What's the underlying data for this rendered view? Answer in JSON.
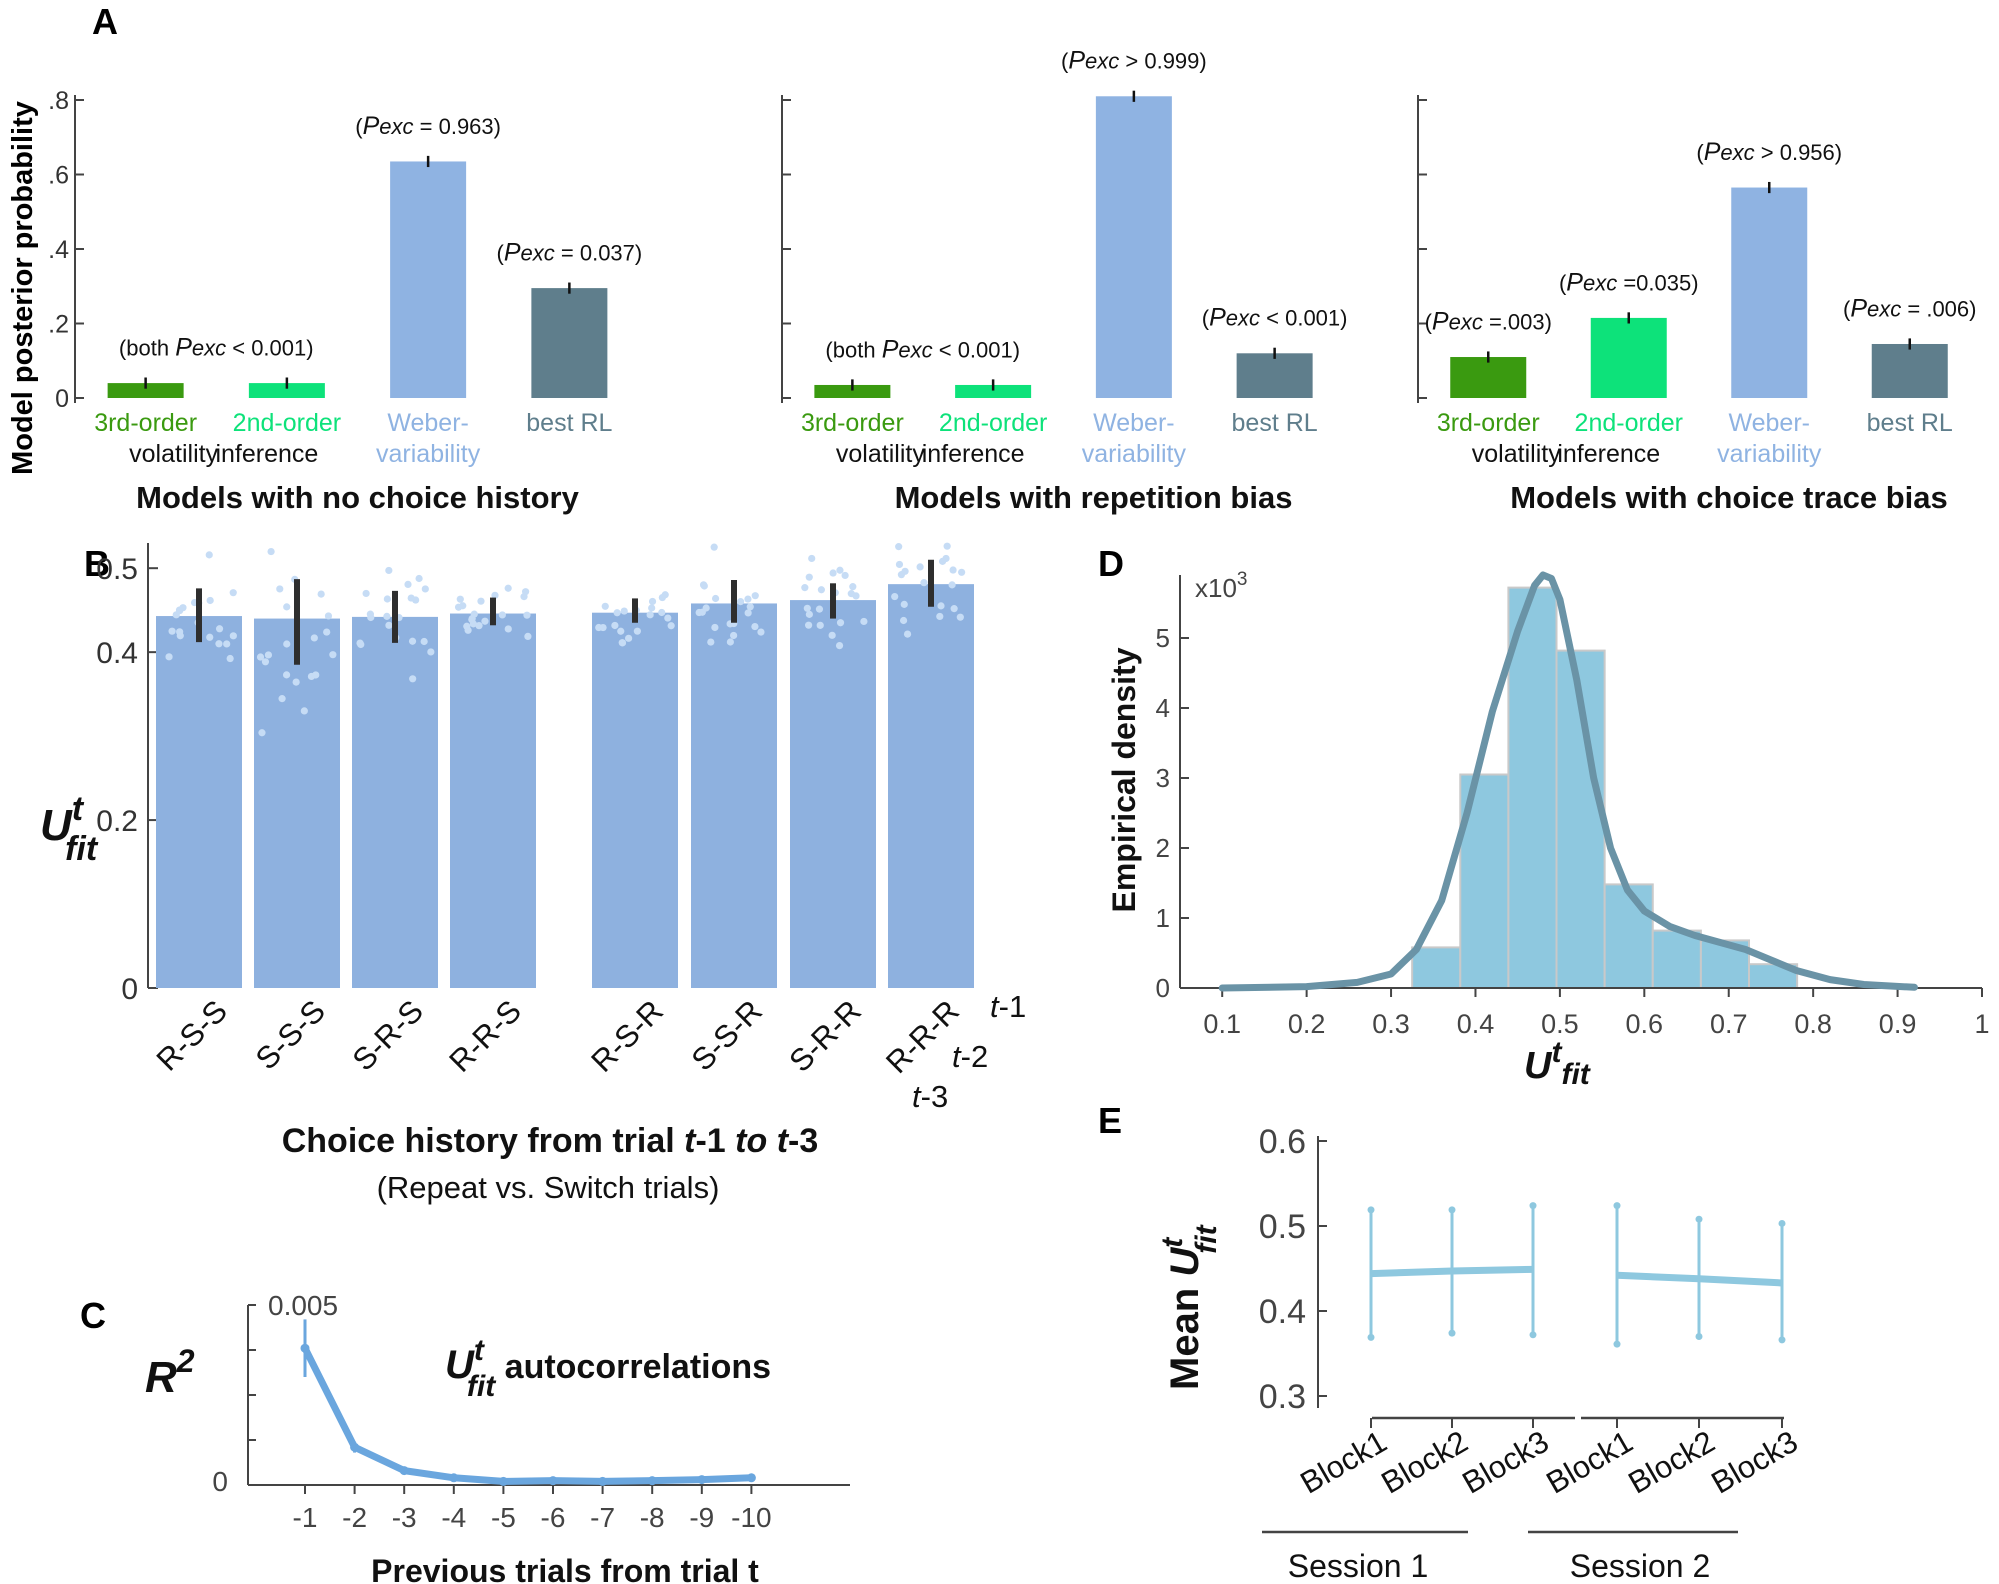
{
  "panel_labels": {
    "a": "A",
    "b": "B",
    "c": "C",
    "d": "D",
    "e": "E"
  },
  "colors": {
    "third": "#3a9a10",
    "second": "#0de27a",
    "weber": "#8fb3e2",
    "rl": "#5f7e8c",
    "bar_b": "#8eb1df",
    "dot_b": "#c6dcf5",
    "err": "#2e2e2e",
    "hist": "#8ec8df",
    "hist_edge": "#c9c9c9",
    "kde": "#6a93a6",
    "line_c": "#6aa6de",
    "line_e": "#8ec8df",
    "axis": "#444444"
  },
  "chart_data": [
    {
      "id": "A",
      "type": "bar",
      "ylabel": "Model posterior probability",
      "yticks": [
        0,
        0.2,
        0.4,
        0.6,
        0.8
      ],
      "ytick_labels": [
        "0",
        ".2",
        ".4",
        ".6",
        ".8"
      ],
      "ylim": [
        0,
        0.8
      ],
      "tick_labels": [
        {
          "line1": "3rd-order",
          "line2": "volatility"
        },
        {
          "line1": "2nd-order",
          "line2": "inference"
        },
        {
          "line1": "Weber-",
          "line2": "variability"
        },
        {
          "line1": "best RL",
          "line2": ""
        }
      ],
      "subplots": [
        {
          "title": "Models with no choice history",
          "values": [
            0.04,
            0.04,
            0.635,
            0.295
          ],
          "errors": [
            0.015,
            0.015,
            0.015,
            0.015
          ],
          "annotations": [
            {
              "pre": "(both ",
              "p": "P",
              "sub": "exc",
              "post": " < 0.001)",
              "bar": [
                0,
                1
              ]
            },
            {
              "pre": "(",
              "p": "P",
              "sub": "exc",
              "post": " = 0.963)",
              "bar": [
                2
              ]
            },
            {
              "pre": "(",
              "p": "P",
              "sub": "exc",
              "post": " = 0.037)",
              "bar": [
                3
              ]
            }
          ]
        },
        {
          "title": "Models with repetition bias",
          "values": [
            0.035,
            0.035,
            0.81,
            0.12
          ],
          "errors": [
            0.015,
            0.015,
            0.015,
            0.015
          ],
          "annotations": [
            {
              "pre": "(both ",
              "p": "P",
              "sub": "exc",
              "post": " < 0.001)",
              "bar": [
                0,
                1
              ]
            },
            {
              "pre": "(",
              "p": "P",
              "sub": "exc",
              "post": " > 0.999)",
              "bar": [
                2
              ]
            },
            {
              "pre": "(",
              "p": "P",
              "sub": "exc",
              "post": " < 0.001)",
              "bar": [
                3
              ]
            }
          ]
        },
        {
          "title": "Models with choice trace bias",
          "values": [
            0.11,
            0.215,
            0.565,
            0.145
          ],
          "errors": [
            0.015,
            0.015,
            0.015,
            0.015
          ],
          "annotations": [
            {
              "pre": "(",
              "p": "P",
              "sub": "exc",
              "post": " =.003)",
              "bar": [
                0
              ]
            },
            {
              "pre": "(",
              "p": "P",
              "sub": "exc",
              "post": " =0.035)",
              "bar": [
                1
              ]
            },
            {
              "pre": "(",
              "p": "P",
              "sub": "exc",
              "post": " > 0.956)",
              "bar": [
                2
              ]
            },
            {
              "pre": "(",
              "p": "P",
              "sub": "exc",
              "post": " = .006)",
              "bar": [
                3
              ]
            }
          ]
        }
      ]
    },
    {
      "id": "B",
      "type": "bar",
      "ylabel_main": "U",
      "ylabel_sup": "t",
      "ylabel_sub": "fit",
      "yticks": [
        0,
        0.2,
        0.4,
        0.5
      ],
      "ytick_labels": [
        "0",
        "0.2",
        "0.4",
        "0.5"
      ],
      "ylim": [
        0,
        0.53
      ],
      "categories": [
        "R-S-S",
        "S-S-S",
        "S-R-S",
        "R-R-S",
        "R-S-R",
        "S-S-R",
        "S-R-R",
        "R-R-R"
      ],
      "values": [
        0.443,
        0.44,
        0.442,
        0.446,
        0.447,
        0.458,
        0.462,
        0.481
      ],
      "err_low": [
        0.412,
        0.385,
        0.411,
        0.432,
        0.435,
        0.435,
        0.44,
        0.454
      ],
      "err_high": [
        0.476,
        0.487,
        0.473,
        0.465,
        0.464,
        0.486,
        0.482,
        0.51
      ],
      "trial_labels": [
        {
          "pre": "t",
          "post": "-1"
        },
        {
          "pre": "t",
          "post": "-2"
        },
        {
          "pre": "t",
          "post": "-3"
        }
      ],
      "xlabel_parts": [
        "Choice history from trial ",
        "t",
        "-1 ",
        "to t",
        "-3"
      ],
      "xlabel_line2": "(Repeat vs. Switch trials)"
    },
    {
      "id": "C",
      "type": "line",
      "ylabel_main": "R",
      "ylabel_sup": "2",
      "ytick_labels": [
        "0",
        "0.005"
      ],
      "ylim": [
        0,
        0.005
      ],
      "x": [
        -1,
        -2,
        -3,
        -4,
        -5,
        -6,
        -7,
        -8,
        -9,
        -10
      ],
      "x_labels": [
        "-1",
        "-2",
        "-3",
        "-4",
        "-5",
        "-6",
        "-7",
        "-8",
        "-9",
        "-10"
      ],
      "values": [
        0.0038,
        0.00105,
        0.0004,
        0.0002,
        0.0001,
        0.00012,
        0.0001,
        0.00012,
        0.00015,
        0.0002
      ],
      "errors": [
        0.0008,
        0.00015,
        8e-05,
        5e-05,
        3e-05,
        3e-05,
        3e-05,
        3e-05,
        3e-05,
        4e-05
      ],
      "annotation": {
        "main": "U",
        "sup": "t",
        "sub": "fit",
        "text": " autocorrelations"
      },
      "xlabel": "Previous trials from trial t"
    },
    {
      "id": "D",
      "type": "histogram",
      "ylabel": "Empirical density",
      "multiplier_base": "x10",
      "multiplier_exp": "3",
      "yticks": [
        0,
        1,
        2,
        3,
        4,
        5
      ],
      "ylim": [
        0,
        5.9
      ],
      "xlim": [
        0.05,
        1.0
      ],
      "xticks": [
        0.1,
        0.2,
        0.3,
        0.4,
        0.5,
        0.6,
        0.7,
        0.8,
        0.9,
        1.0
      ],
      "x_labels": [
        "0.1",
        "0.2",
        "0.3",
        "0.4",
        "0.5",
        "0.6",
        "0.7",
        "0.8",
        "0.9",
        "1"
      ],
      "bin_edges": [
        0.325,
        0.382,
        0.439,
        0.496,
        0.553,
        0.61,
        0.667,
        0.724,
        0.781
      ],
      "bin_values": [
        0.58,
        3.05,
        5.72,
        4.82,
        1.48,
        0.82,
        0.68,
        0.34
      ],
      "kde_x": [
        0.1,
        0.2,
        0.26,
        0.3,
        0.33,
        0.36,
        0.39,
        0.42,
        0.45,
        0.47,
        0.48,
        0.49,
        0.5,
        0.52,
        0.54,
        0.56,
        0.58,
        0.6,
        0.63,
        0.66,
        0.69,
        0.72,
        0.75,
        0.78,
        0.82,
        0.86,
        0.92
      ],
      "kde_y": [
        0.0,
        0.02,
        0.08,
        0.2,
        0.55,
        1.25,
        2.5,
        3.95,
        5.1,
        5.75,
        5.9,
        5.85,
        5.55,
        4.4,
        3.0,
        2.0,
        1.4,
        1.1,
        0.88,
        0.75,
        0.65,
        0.55,
        0.4,
        0.25,
        0.12,
        0.05,
        0.01
      ],
      "xlabel_main": "U",
      "xlabel_sup": "t",
      "xlabel_sub": "fit"
    },
    {
      "id": "E",
      "type": "line",
      "ylabel_pre": "Mean ",
      "ylabel_main": "U",
      "ylabel_sup": "t",
      "ylabel_sub": "fit",
      "yticks": [
        0.3,
        0.4,
        0.5,
        0.6
      ],
      "ytick_labels": [
        "0.3",
        "0.4",
        "0.5",
        "0.6"
      ],
      "ylim": [
        0.28,
        0.6
      ],
      "categories": [
        "Block1",
        "Block2",
        "Block3"
      ],
      "sessions": [
        {
          "name": "Session 1",
          "values": [
            0.444,
            0.447,
            0.449
          ],
          "err_low": [
            0.369,
            0.374,
            0.372
          ],
          "err_high": [
            0.519,
            0.519,
            0.524
          ]
        },
        {
          "name": "Session 2",
          "values": [
            0.442,
            0.438,
            0.433
          ],
          "err_low": [
            0.361,
            0.37,
            0.366
          ],
          "err_high": [
            0.524,
            0.508,
            0.503
          ]
        }
      ]
    }
  ]
}
